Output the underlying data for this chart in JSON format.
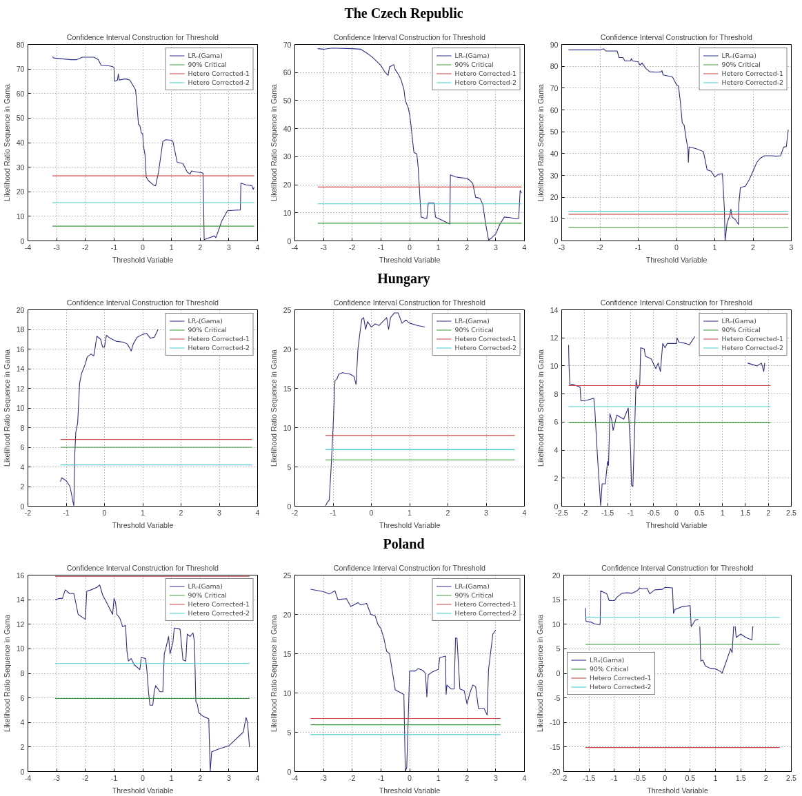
{
  "chart_data": [
    {
      "type": "line",
      "title": "Confidence Interval Construction for Threshold",
      "xlabel": "Threshold Variable",
      "ylabel": "Likelihood Ratio Sequence in Gama",
      "xlim": [
        -4,
        4
      ],
      "ylim": [
        0,
        80
      ],
      "xticks": [
        -4,
        -3,
        -2,
        -1,
        0,
        1,
        2,
        3,
        4
      ],
      "yticks": [
        0,
        10,
        20,
        30,
        40,
        50,
        60,
        70,
        80
      ],
      "grid": true,
      "legend": "top right",
      "series": [
        {
          "name": "LRₙ(Gama)",
          "color": "#2e2e8c",
          "x": [
            -3.15,
            -3.1,
            -2.5,
            -2.3,
            -2.1,
            -1.7,
            -1.55,
            -1.45,
            -1.2,
            -1.05,
            -1.0,
            -0.98,
            -0.88,
            -0.85,
            -0.82,
            -0.6,
            -0.45,
            -0.3,
            -0.25,
            -0.2,
            -0.15,
            -0.1,
            -0.05,
            0,
            0.02,
            0.08,
            0.12,
            0.2,
            0.4,
            0.45,
            0.55,
            0.7,
            0.8,
            1.0,
            1.05,
            1.2,
            1.4,
            1.55,
            1.65,
            1.7,
            1.9,
            2.05,
            2.1,
            2.14,
            2.3,
            2.5,
            2.55,
            2.75,
            2.95,
            3.2,
            3.4,
            3.42,
            3.6,
            3.8,
            3.85,
            3.88
          ],
          "values": [
            75,
            74.5,
            73.8,
            73.8,
            74.8,
            74.8,
            73.8,
            71.5,
            71.3,
            71,
            70.5,
            65,
            65.5,
            68,
            65.5,
            66,
            65.5,
            62.5,
            61.5,
            55,
            47.5,
            47,
            44,
            43.5,
            39,
            35,
            26,
            24.5,
            22.5,
            22.5,
            28,
            40.5,
            41.2,
            41,
            40.5,
            32,
            31.5,
            28,
            27.2,
            28.5,
            28,
            27.8,
            27.5,
            0.5,
            1.2,
            2,
            1.3,
            8,
            12.3,
            12.5,
            12.6,
            23.5,
            22.8,
            22.5,
            21,
            21.8
          ]
        },
        {
          "name": "90% Critical",
          "color": "#3a9a3a",
          "x": [
            -3.15,
            3.88
          ],
          "values": [
            6.0,
            6.0
          ]
        },
        {
          "name": "Hetero Corrected-1",
          "color": "#cc4444",
          "x": [
            -3.15,
            3.88
          ],
          "values": [
            26.5,
            26.5
          ]
        },
        {
          "name": "Hetero Corrected-2",
          "color": "#44cccc",
          "x": [
            -3.15,
            3.88
          ],
          "values": [
            15.6,
            15.6
          ]
        }
      ]
    },
    {
      "type": "line",
      "title": "Confidence Interval Construction for Threshold",
      "subtitle": "The Czech Republic",
      "xlabel": "Threshold Variable",
      "ylabel": "Likelihood Ratio Sequence in Gama",
      "xlim": [
        -4,
        4
      ],
      "ylim": [
        0,
        70
      ],
      "xticks": [
        -4,
        -3,
        -2,
        -1,
        0,
        1,
        2,
        3,
        4
      ],
      "yticks": [
        0,
        10,
        20,
        30,
        40,
        50,
        60,
        70
      ],
      "grid": true,
      "legend": "top right",
      "series": [
        {
          "name": "LRₙ(Gama)",
          "color": "#2e2e8c",
          "x": [
            -3.2,
            -3.0,
            -2.7,
            -2.0,
            -1.7,
            -1.5,
            -1.3,
            -1.1,
            -1.0,
            -0.85,
            -0.75,
            -0.7,
            -0.55,
            -0.5,
            -0.4,
            -0.3,
            -0.2,
            -0.15,
            -0.05,
            0,
            0.05,
            0.1,
            0.15,
            0.25,
            0.3,
            0.35,
            0.4,
            0.55,
            0.6,
            0.65,
            0.85,
            0.9,
            1.0,
            1.2,
            1.4,
            1.42,
            1.6,
            1.8,
            2.0,
            2.1,
            2.2,
            2.3,
            2.45,
            2.55,
            2.65,
            2.75,
            2.85,
            3.0,
            3.15,
            3.3,
            3.5,
            3.7,
            3.8,
            3.85,
            3.9
          ],
          "values": [
            68.5,
            68.3,
            68.7,
            68.5,
            68.3,
            67,
            65.5,
            63.5,
            62.5,
            60,
            59,
            62,
            62.8,
            61,
            59.5,
            57.5,
            54,
            50,
            47.5,
            45,
            41,
            36,
            31.5,
            31,
            26,
            17,
            8.5,
            8,
            8,
            13.5,
            13.5,
            8.5,
            8,
            7,
            6,
            23.5,
            22.8,
            22.5,
            22.3,
            21.5,
            20.5,
            15.5,
            15.2,
            13,
            6,
            0.3,
            1,
            2.5,
            6,
            8.5,
            8.3,
            7.8,
            8,
            18,
            17
          ]
        },
        {
          "name": "90% Critical",
          "color": "#3a9a3a",
          "x": [
            -3.2,
            3.9
          ],
          "values": [
            6.3,
            6.3
          ]
        },
        {
          "name": "Hetero Corrected-1",
          "color": "#cc4444",
          "x": [
            -3.2,
            3.9
          ],
          "values": [
            19.2,
            19.2
          ]
        },
        {
          "name": "Hetero Corrected-2",
          "color": "#44cccc",
          "x": [
            -3.2,
            3.9
          ],
          "values": [
            13.2,
            13.2
          ]
        }
      ]
    },
    {
      "type": "line",
      "title": "Confidence Interval Construction for Threshold",
      "xlabel": "Threshold Variable",
      "ylabel": "Likelihood Ratio Sequence in Gama",
      "xlim": [
        -3,
        3
      ],
      "ylim": [
        0,
        90
      ],
      "xticks": [
        -3,
        -2,
        -1,
        0,
        1,
        2,
        3
      ],
      "yticks": [
        0,
        10,
        20,
        30,
        40,
        50,
        60,
        70,
        80,
        90
      ],
      "grid": true,
      "legend": "top right",
      "series": [
        {
          "name": "LRₙ(Gama)",
          "color": "#2e2e8c",
          "x": [
            -2.82,
            -2.0,
            -1.9,
            -1.85,
            -1.55,
            -1.5,
            -1.4,
            -1.35,
            -1.2,
            -1.18,
            -1.15,
            -1.0,
            -0.95,
            -0.9,
            -0.8,
            -0.7,
            -0.5,
            -0.4,
            -0.38,
            -0.35,
            -0.2,
            -0.1,
            0,
            0.05,
            0.1,
            0.15,
            0.2,
            0.25,
            0.3,
            0.31,
            0.33,
            0.5,
            0.7,
            0.75,
            0.8,
            0.9,
            1.0,
            1.1,
            1.2,
            1.25,
            1.27,
            1.32,
            1.4,
            1.42,
            1.45,
            1.55,
            1.62,
            1.63,
            1.67,
            1.8,
            1.9,
            2.0,
            2.1,
            2.2,
            2.3,
            2.5,
            2.6,
            2.72,
            2.8,
            2.87,
            2.92
          ],
          "values": [
            87.5,
            87.5,
            88,
            87,
            87,
            84,
            84,
            82.5,
            82.5,
            83.5,
            82.5,
            82,
            80.5,
            81.5,
            79,
            77.5,
            77.3,
            77.5,
            78,
            76,
            75.5,
            75,
            71.5,
            71,
            64,
            54,
            53,
            47,
            42,
            36,
            43,
            42.3,
            41,
            37,
            32.5,
            32,
            29.3,
            30.5,
            30.8,
            15,
            0,
            8,
            12,
            14.5,
            11,
            9.5,
            7.5,
            17,
            24.5,
            25,
            28,
            32,
            36,
            38,
            39,
            39,
            38.8,
            39,
            43,
            43.2,
            51
          ]
        },
        {
          "name": "90% Critical",
          "color": "#3a9a3a",
          "x": [
            -2.82,
            2.92
          ],
          "values": [
            6.1,
            6.1
          ]
        },
        {
          "name": "Hetero Corrected-1",
          "color": "#cc4444",
          "x": [
            -2.82,
            2.92
          ],
          "values": [
            12.2,
            12.2
          ]
        },
        {
          "name": "Hetero Corrected-2",
          "color": "#44cccc",
          "x": [
            -2.82,
            2.92
          ],
          "values": [
            13.6,
            13.6
          ]
        }
      ]
    },
    {
      "type": "line",
      "title": "Confidence Interval Construction for Threshold",
      "xlabel": "Threshold Variable",
      "ylabel": "Likelihood Ratio Sequence in Gama",
      "xlim": [
        -2,
        4
      ],
      "ylim": [
        0,
        20
      ],
      "xticks": [
        -2,
        -1,
        0,
        1,
        2,
        3,
        4
      ],
      "yticks": [
        0,
        2,
        4,
        6,
        8,
        10,
        12,
        14,
        16,
        18,
        20
      ],
      "grid": true,
      "legend": "top right",
      "series": [
        {
          "name": "LRₙ(Gama)",
          "color": "#2e2e8c",
          "x": [
            -1.15,
            -1.12,
            -1.0,
            -0.9,
            -0.8,
            -0.78,
            -0.75,
            -0.7,
            -0.65,
            -0.6,
            -0.55,
            -0.5,
            -0.45,
            -0.35,
            -0.28,
            -0.25,
            -0.2,
            -0.1,
            -0.05,
            0,
            0.05,
            0.15,
            0.3,
            0.5,
            0.6,
            0.7,
            0.75,
            0.85,
            1.0,
            1.1,
            1.2,
            1.3,
            1.4
          ],
          "values": [
            2.5,
            2.9,
            2.6,
            2.0,
            0,
            5,
            7.5,
            8.5,
            12.5,
            13.5,
            14,
            14.5,
            15.2,
            15.5,
            15.3,
            16,
            17.3,
            17,
            16.2,
            16.2,
            17.4,
            17.1,
            16.8,
            16.7,
            16.5,
            15.8,
            16.5,
            17.2,
            17.5,
            17.6,
            17.1,
            17.2,
            18
          ]
        },
        {
          "name": "90% Critical",
          "color": "#3a9a3a",
          "x": [
            -1.15,
            3.85
          ],
          "values": [
            6.0,
            6.0
          ]
        },
        {
          "name": "Hetero Corrected-1",
          "color": "#cc4444",
          "x": [
            -1.15,
            3.85
          ],
          "values": [
            6.8,
            6.8
          ]
        },
        {
          "name": "Hetero Corrected-2",
          "color": "#44cccc",
          "x": [
            -1.15,
            3.85
          ],
          "values": [
            4.2,
            4.2
          ]
        }
      ]
    },
    {
      "type": "line",
      "title": "Confidence Interval Construction for Threshold",
      "subtitle": "Hungary",
      "xlabel": "Threshold Variable",
      "ylabel": "Likelihood Ratio Sequence in Gama",
      "xlim": [
        -2,
        4
      ],
      "ylim": [
        0,
        25
      ],
      "xticks": [
        -2,
        -1,
        0,
        1,
        2,
        3,
        4
      ],
      "yticks": [
        0,
        5,
        10,
        15,
        20,
        25
      ],
      "grid": true,
      "legend": "top right",
      "series": [
        {
          "name": "LRₙ(Gama)",
          "color": "#2e2e8c",
          "x": [
            -1.2,
            -1.15,
            -1.1,
            -1.05,
            -1.0,
            -0.95,
            -0.9,
            -0.85,
            -0.75,
            -0.55,
            -0.45,
            -0.4,
            -0.35,
            -0.3,
            -0.25,
            -0.2,
            -0.15,
            -0.1,
            0,
            0.1,
            0.2,
            0.3,
            0.4,
            0.45,
            0.5,
            0.6,
            0.7,
            0.8,
            0.9,
            1.0,
            1.2,
            1.4
          ],
          "values": [
            0,
            0.5,
            0.8,
            5,
            10,
            16,
            16.2,
            16.8,
            17,
            16.8,
            16.5,
            15.5,
            20,
            22,
            23.8,
            24,
            22.5,
            23.5,
            22.8,
            23.2,
            23,
            23.5,
            24,
            22.5,
            24,
            24.6,
            24.6,
            23.3,
            23.7,
            23.3,
            23,
            22.8
          ]
        },
        {
          "name": "90% Critical",
          "color": "#3a9a3a",
          "x": [
            -1.2,
            3.75
          ],
          "values": [
            5.9,
            5.9
          ]
        },
        {
          "name": "Hetero Corrected-1",
          "color": "#cc4444",
          "x": [
            -1.2,
            3.75
          ],
          "values": [
            9.0,
            9.0
          ]
        },
        {
          "name": "Hetero Corrected-2",
          "color": "#44cccc",
          "x": [
            -1.2,
            3.75
          ],
          "values": [
            7.2,
            7.2
          ]
        }
      ]
    },
    {
      "type": "line",
      "title": "Confidence Interval Construction for Threshold",
      "xlabel": "Threshold Variable",
      "ylabel": "Likelihood Ratio Sequence in Gama",
      "xlim": [
        -2.5,
        2.5
      ],
      "ylim": [
        0,
        14
      ],
      "xticks": [
        -2.5,
        -2,
        -1.5,
        -1,
        -0.5,
        0,
        0.5,
        1,
        1.5,
        2,
        2.5
      ],
      "yticks": [
        0,
        2,
        4,
        6,
        8,
        10,
        12,
        14
      ],
      "grid": true,
      "legend": "top right",
      "series": [
        {
          "name": "LRₙ(Gama)",
          "color": "#2e2e8c",
          "x": [
            -2.35,
            -2.34,
            -2.32,
            -2.28,
            -2.1,
            -2.08,
            -1.95,
            -1.8,
            -1.78,
            -1.72,
            -1.68,
            -1.65,
            -1.62,
            -1.55,
            -1.5,
            -1.48,
            -1.45,
            -1.4,
            -1.38,
            -1.3,
            -1.15,
            -1.05,
            -1.0,
            -0.98,
            -0.95,
            -0.92,
            -0.88,
            -0.85,
            -0.8,
            -0.78,
            -0.7,
            -0.68,
            -0.55,
            -0.45,
            -0.4,
            -0.35,
            -0.3,
            -0.25,
            -0.2,
            0,
            0.01,
            0.05,
            0.2,
            0.28,
            0.4,
            null,
            1.55,
            1.65,
            1.75,
            1.85,
            1.9,
            1.92
          ],
          "values": [
            11.5,
            10,
            8.6,
            8.7,
            8.5,
            7.5,
            7.55,
            7.7,
            7,
            3.5,
            1.5,
            0,
            1.6,
            1.6,
            3.2,
            2.9,
            6.6,
            6,
            5.4,
            6.5,
            6.2,
            7,
            4,
            1.5,
            1.4,
            4.5,
            9,
            8.4,
            8.7,
            11.3,
            11.2,
            10.7,
            10.5,
            9.8,
            10.2,
            9.6,
            11.6,
            11.3,
            11.6,
            11.6,
            12,
            11.7,
            11.6,
            11.5,
            12.1,
            null,
            10.2,
            10.1,
            10.0,
            10.2,
            9.6,
            10.2
          ]
        },
        {
          "name": "90% Critical",
          "color": "#3a9a3a",
          "x": [
            -2.35,
            2.05
          ],
          "values": [
            5.95,
            5.95
          ]
        },
        {
          "name": "Hetero Corrected-1",
          "color": "#cc4444",
          "x": [
            -2.35,
            2.05
          ],
          "values": [
            8.6,
            8.6
          ]
        },
        {
          "name": "Hetero Corrected-2",
          "color": "#44cccc",
          "x": [
            -2.35,
            2.05
          ],
          "values": [
            7.1,
            7.1
          ]
        }
      ]
    },
    {
      "type": "line",
      "title": "Confidence Interval Construction for Threshold",
      "xlabel": "Threshold Variable",
      "ylabel": "Likelihood Ratio Sequence in Gama",
      "xlim": [
        -4,
        4
      ],
      "ylim": [
        0,
        16
      ],
      "xticks": [
        -4,
        -3,
        -2,
        -1,
        0,
        1,
        2,
        3,
        4
      ],
      "yticks": [
        0,
        2,
        4,
        6,
        8,
        10,
        12,
        14,
        16
      ],
      "grid": true,
      "legend": "top right",
      "series": [
        {
          "name": "LRₙ(Gama)",
          "color": "#2e2e8c",
          "x": [
            -3.05,
            -2.9,
            -2.8,
            -2.7,
            -2.55,
            -2.4,
            -2.25,
            -2.0,
            -1.95,
            -1.8,
            -1.6,
            -1.5,
            -1.4,
            -1.2,
            -1.05,
            -1.0,
            -0.95,
            -0.9,
            -0.8,
            -0.7,
            -0.6,
            -0.55,
            -0.5,
            -0.4,
            -0.3,
            -0.1,
            -0.05,
            0.1,
            0.15,
            0.2,
            0.25,
            0.35,
            0.4,
            0.45,
            0.6,
            0.7,
            0.75,
            0.8,
            0.9,
            0.95,
            1.05,
            1.1,
            1.3,
            1.4,
            1.5,
            1.55,
            1.65,
            1.75,
            1.8,
            1.85,
            1.9,
            1.95,
            2.1,
            2.2,
            2.3,
            2.35,
            2.4,
            2.6,
            3.0,
            3.5,
            3.6,
            3.65,
            3.72
          ],
          "values": [
            14,
            14.1,
            14.1,
            14.8,
            14.5,
            14.5,
            12.8,
            12.4,
            14.7,
            14.8,
            15,
            15.2,
            14.4,
            13.5,
            12.8,
            14.1,
            13.8,
            12.8,
            12.5,
            11.8,
            11.9,
            9.8,
            9,
            9.2,
            8.7,
            8.3,
            9.3,
            9.2,
            8.1,
            6.5,
            5.4,
            5.4,
            6.5,
            7,
            6.5,
            6.5,
            9.6,
            10,
            11,
            9.6,
            10.5,
            11.7,
            11.6,
            9.1,
            9,
            11.2,
            11,
            11.3,
            10.6,
            5.7,
            5.5,
            4.8,
            4.5,
            4.4,
            4.3,
            0,
            1.6,
            1.8,
            2.1,
            3.2,
            4.4,
            4,
            2
          ]
        },
        {
          "name": "90% Critical",
          "color": "#3a9a3a",
          "x": [
            -3.05,
            3.72
          ],
          "values": [
            5.95,
            5.95
          ]
        },
        {
          "name": "Hetero Corrected-1",
          "color": "#cc4444",
          "x": [
            -3.05,
            3.72
          ],
          "values": [
            15.9,
            15.9
          ]
        },
        {
          "name": "Hetero Corrected-2",
          "color": "#44cccc",
          "x": [
            -3.05,
            3.72
          ],
          "values": [
            8.8,
            8.8
          ]
        }
      ]
    },
    {
      "type": "line",
      "title": "Confidence Interval Construction for Threshold",
      "subtitle": "Poland",
      "xlabel": "Threshold Variable",
      "ylabel": "Likelihood Ratio Sequence in Gama",
      "xlim": [
        -4,
        4
      ],
      "ylim": [
        0,
        25
      ],
      "xticks": [
        -4,
        -3,
        -2,
        -1,
        0,
        1,
        2,
        3,
        4
      ],
      "yticks": [
        0,
        5,
        10,
        15,
        20,
        25
      ],
      "grid": true,
      "legend": "top right",
      "series": [
        {
          "name": "LRₙ(Gama)",
          "color": "#2e2e8c",
          "x": [
            -3.45,
            -3.0,
            -2.8,
            -2.6,
            -2.5,
            -2.2,
            -2.05,
            -1.8,
            -1.7,
            -1.5,
            -1.35,
            -1.2,
            -1.1,
            -1.0,
            -0.9,
            -0.8,
            -0.7,
            -0.6,
            -0.5,
            -0.3,
            -0.2,
            -0.15,
            -0.1,
            -0.05,
            0,
            0.2,
            0.3,
            0.45,
            0.55,
            0.6,
            0.65,
            0.8,
            1.0,
            1.05,
            1.25,
            1.27,
            1.3,
            1.45,
            1.55,
            1.6,
            1.65,
            1.75,
            1.9,
            2.0,
            2.1,
            2.2,
            2.3,
            2.4,
            2.6,
            2.7,
            2.75,
            2.9,
            3.0
          ],
          "values": [
            23.2,
            22.9,
            22.6,
            23,
            21.9,
            22,
            21,
            21.5,
            21.2,
            21.4,
            20,
            19.8,
            18.7,
            18.2,
            17,
            15.3,
            15,
            12.7,
            10.4,
            10,
            9.8,
            0,
            0.5,
            6.5,
            12.8,
            12.8,
            13.1,
            12.9,
            12.5,
            9.5,
            12.3,
            12.7,
            13,
            14.5,
            14.7,
            9.8,
            11,
            10.5,
            10.5,
            17,
            17,
            10.5,
            10.3,
            8.6,
            10,
            11,
            10.8,
            8,
            8,
            7.2,
            13,
            17.5,
            18
          ]
        },
        {
          "name": "90% Critical",
          "color": "#3a9a3a",
          "x": [
            -3.45,
            3.17
          ],
          "values": [
            5.95,
            5.95
          ]
        },
        {
          "name": "Hetero Corrected-1",
          "color": "#cc4444",
          "x": [
            -3.45,
            3.17
          ],
          "values": [
            6.75,
            6.75
          ]
        },
        {
          "name": "Hetero Corrected-2",
          "color": "#44cccc",
          "x": [
            -3.45,
            3.17
          ],
          "values": [
            4.7,
            4.7
          ]
        }
      ]
    },
    {
      "type": "line",
      "title": "Confidence Interval Construction for Threshold",
      "xlabel": "Threshold Variable",
      "ylabel": "Likelihood Ratio Sequence in Gama",
      "xlim": [
        -2,
        2.5
      ],
      "ylim": [
        -20,
        20
      ],
      "xticks": [
        -2,
        -1.5,
        -1,
        -0.5,
        0,
        0.5,
        1,
        1.5,
        2,
        2.5
      ],
      "yticks": [
        -20,
        -15,
        -10,
        -5,
        0,
        5,
        10,
        15,
        20
      ],
      "grid": true,
      "legend": "left",
      "series": [
        {
          "name": "LRₙ(Gama)",
          "color": "#2e2e8c",
          "x": [
            -1.57,
            -1.56,
            -1.45,
            -1.4,
            -1.3,
            -1.28,
            -1.27,
            -1.15,
            -1.1,
            -1.0,
            -0.95,
            -0.85,
            -0.75,
            -0.65,
            -0.55,
            -0.5,
            -0.45,
            -0.35,
            -0.3,
            -0.2,
            -0.05,
            0,
            0.15,
            0.17,
            0.2,
            0.35,
            0.5,
            0.52,
            0.6,
            0.66,
            null,
            0.69,
            0.71,
            0.75,
            0.8,
            0.9,
            1.0,
            1.1,
            1.13,
            1.2,
            1.3,
            1.33,
            1.36,
            null,
            1.39,
            1.41,
            1.5,
            1.6,
            1.72,
            1.74
          ],
          "values": [
            13.3,
            10.6,
            10.4,
            10.1,
            9.9,
            10,
            16.8,
            16.2,
            14.8,
            14.8,
            15.5,
            16.3,
            16.4,
            16.3,
            16.8,
            17.4,
            17.2,
            17.3,
            16.2,
            17,
            17.1,
            17.5,
            17.4,
            12.2,
            13,
            13.6,
            13.8,
            9.5,
            10.8,
            11,
            null,
            9.5,
            2.5,
            2.7,
            1.5,
            1,
            0.9,
            0.4,
            0,
            2,
            5,
            4.2,
            9.6,
            null,
            9.6,
            7.3,
            8,
            7.3,
            6.8,
            9.6
          ]
        },
        {
          "name": "90% Critical",
          "color": "#3a9a3a",
          "x": [
            -1.57,
            2.27
          ],
          "values": [
            5.9,
            5.9
          ]
        },
        {
          "name": "Hetero Corrected-1",
          "color": "#cc4444",
          "x": [
            -1.57,
            2.27
          ],
          "values": [
            -15.1,
            -15.1
          ]
        },
        {
          "name": "Hetero Corrected-2",
          "color": "#44cccc",
          "x": [
            -1.57,
            2.27
          ],
          "values": [
            11.4,
            11.4
          ]
        }
      ]
    }
  ]
}
